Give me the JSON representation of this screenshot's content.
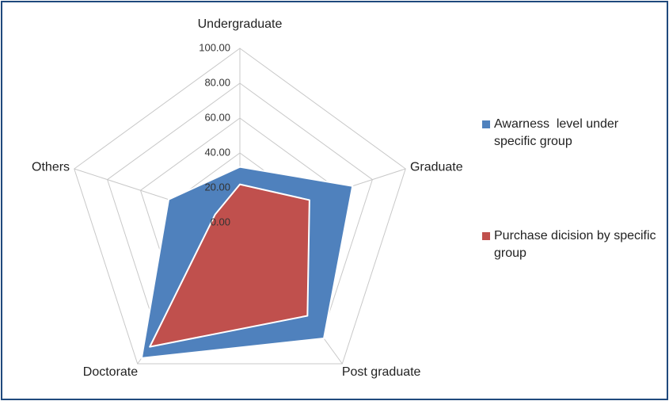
{
  "chart_data": {
    "type": "radar",
    "categories": [
      "Undergraduate",
      "Graduate",
      "Post graduate",
      "Doctorate",
      "Others"
    ],
    "series": [
      {
        "name": "Awarness  level under specific group",
        "color": "#4f81bd",
        "values": [
          32,
          68,
          82,
          96,
          43
        ]
      },
      {
        "name": "Purchase dicision by specific group",
        "color": "#c0504d",
        "values": [
          22,
          42,
          66,
          88,
          15
        ]
      }
    ],
    "ylim": [
      0,
      100
    ],
    "yticks": [
      {
        "value": 0,
        "label": "0.00"
      },
      {
        "value": 20,
        "label": "20.00"
      },
      {
        "value": 40,
        "label": "40.00"
      },
      {
        "value": 60,
        "label": "60.00"
      },
      {
        "value": 80,
        "label": "80.00"
      },
      {
        "value": 100,
        "label": "100.00"
      }
    ],
    "grid": true,
    "legend": "right"
  }
}
